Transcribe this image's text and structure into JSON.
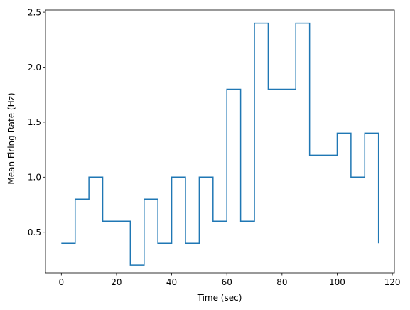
{
  "chart_data": {
    "type": "line",
    "drawstyle": "steps-post",
    "xlabel": "Time (sec)",
    "ylabel": "Mean Firing Rate (Hz)",
    "xlim": [
      -5.75,
      120.75
    ],
    "ylim": [
      0.13,
      2.52
    ],
    "xticks": [
      0,
      20,
      40,
      60,
      80,
      100,
      120
    ],
    "xtick_labels": [
      "0",
      "20",
      "40",
      "60",
      "80",
      "100",
      "120"
    ],
    "yticks": [
      0.5,
      1.0,
      1.5,
      2.0,
      2.5
    ],
    "ytick_labels": [
      "0.5",
      "1.0",
      "1.5",
      "2.0",
      "2.5"
    ],
    "grid": false,
    "color": "#1f77b4",
    "series": [
      {
        "x": [
          0,
          5,
          10,
          15,
          20,
          25,
          30,
          35,
          40,
          45,
          50,
          55,
          60,
          65,
          70,
          75,
          80,
          85,
          90,
          95,
          100,
          105,
          110,
          115
        ],
        "y": [
          0.4,
          0.8,
          1.0,
          0.6,
          0.6,
          0.2,
          0.8,
          0.4,
          1.0,
          0.4,
          1.0,
          0.6,
          1.8,
          0.6,
          2.4,
          1.8,
          1.8,
          2.4,
          1.2,
          1.2,
          1.4,
          1.0,
          1.4,
          0.4
        ]
      }
    ]
  }
}
